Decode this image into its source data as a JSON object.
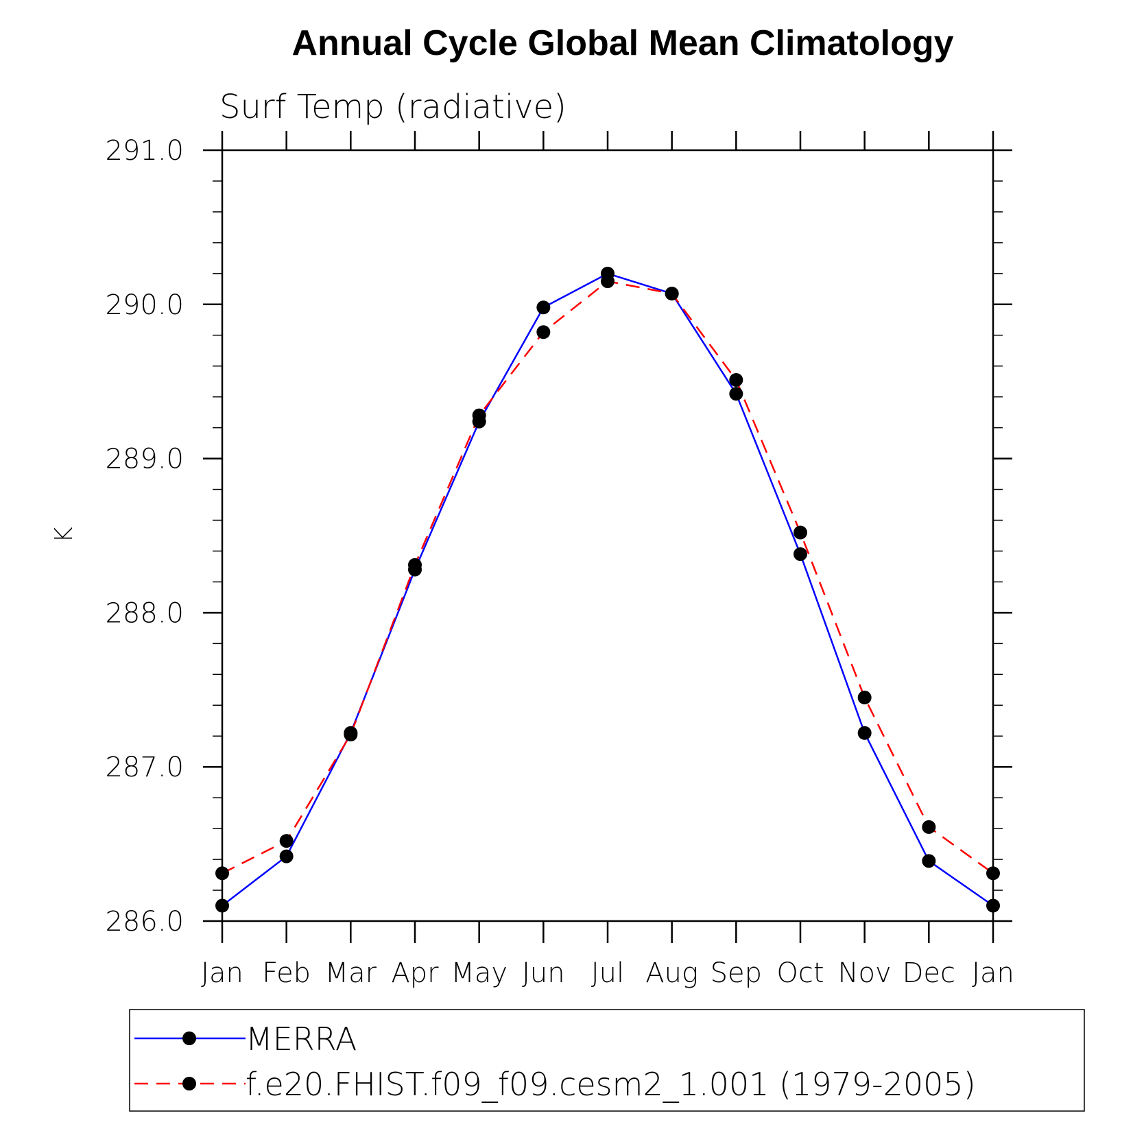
{
  "chart_data": {
    "type": "line",
    "title": "Annual Cycle Global Mean Climatology",
    "subtitle": "Surf Temp (radiative)",
    "ylabel": "K",
    "xlabel": "",
    "categories": [
      "Jan",
      "Feb",
      "Mar",
      "Apr",
      "May",
      "Jun",
      "Jul",
      "Aug",
      "Sep",
      "Oct",
      "Nov",
      "Dec",
      "Jan"
    ],
    "ylim": [
      286.0,
      291.0
    ],
    "yticks": [
      "286.0",
      "287.0",
      "288.0",
      "289.0",
      "290.0",
      "291.0"
    ],
    "grid": false,
    "legend_position": "bottom",
    "series": [
      {
        "name": "MERRA",
        "color": "#0000ff",
        "dash": "solid",
        "marker": "filled-circle",
        "values": [
          286.1,
          286.42,
          287.22,
          288.28,
          289.24,
          289.98,
          290.2,
          290.07,
          289.42,
          288.38,
          287.22,
          286.39,
          286.1
        ]
      },
      {
        "name": "f.e20.FHIST.f09_f09.cesm2_1.001 (1979-2005)",
        "color": "#ff0000",
        "dash": "dashed",
        "marker": "filled-circle",
        "values": [
          286.31,
          286.52,
          287.21,
          288.31,
          289.28,
          289.82,
          290.15,
          290.07,
          289.51,
          288.52,
          287.45,
          286.61,
          286.31
        ]
      }
    ]
  }
}
